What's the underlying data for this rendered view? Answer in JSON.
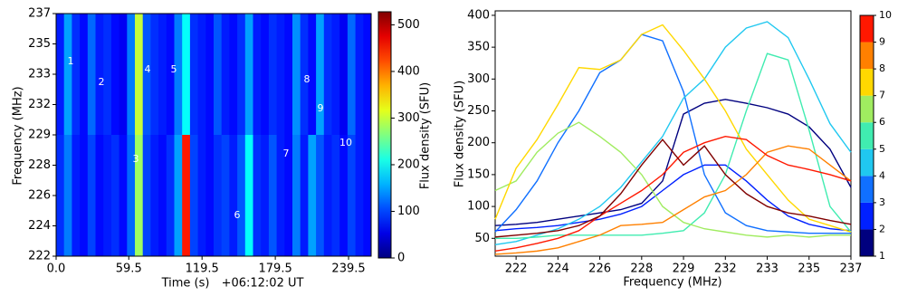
{
  "chart_data": [
    {
      "type": "heatmap",
      "cmap": "jet",
      "xlabel": "Time (s)",
      "x_annotation": "+06:12:02 UT",
      "ylabel": "Frequency (MHz)",
      "colorbar_label": "Flux density (SFU)",
      "xlim": [
        0,
        258
      ],
      "xticks": [
        {
          "value": 0,
          "label": "0.0"
        },
        59.5,
        119.5,
        179.5,
        239.5
      ],
      "ylim": [
        0,
        8
      ],
      "yticks": [
        {
          "value": 0,
          "label": "222"
        },
        {
          "value": 1,
          "label": "224"
        },
        {
          "value": 2,
          "label": "226"
        },
        {
          "value": 3,
          "label": "228"
        },
        {
          "value": 4,
          "label": "229"
        },
        {
          "value": 5,
          "label": "232"
        },
        {
          "value": 6,
          "label": "233"
        },
        {
          "value": 7,
          "label": "235"
        },
        {
          "value": 8,
          "label": "237"
        }
      ],
      "clim": [
        0,
        528
      ],
      "cticks": [
        0,
        100,
        200,
        300,
        400,
        500
      ],
      "annotations": [
        "1",
        "2",
        "3",
        "4",
        "5",
        "6",
        "7",
        "8",
        "9",
        "10"
      ],
      "z": [
        [
          80,
          150,
          90,
          70,
          120,
          80,
          90,
          70,
          60,
          130,
          300,
          110,
          90,
          80,
          70,
          130,
          200,
          90,
          80,
          70,
          110,
          80,
          70,
          90,
          150,
          80,
          70,
          90,
          80,
          70,
          140,
          90,
          70,
          150,
          90,
          80,
          60,
          120,
          80,
          70
        ],
        [
          90,
          130,
          80,
          70,
          100,
          70,
          80,
          90,
          70,
          120,
          280,
          100,
          80,
          70,
          90,
          150,
          450,
          100,
          80,
          70,
          90,
          100,
          80,
          110,
          200,
          90,
          80,
          110,
          80,
          70,
          130,
          80,
          150,
          110,
          80,
          90,
          70,
          100,
          80,
          70
        ]
      ]
    },
    {
      "type": "line",
      "xlabel": "Frequency (MHz)",
      "ylabel": "Flux density (SFU)",
      "xlim": [
        -0.5,
        8
      ],
      "xticks": [
        {
          "value": 0,
          "label": "222"
        },
        {
          "value": 1,
          "label": "224"
        },
        {
          "value": 2,
          "label": "226"
        },
        {
          "value": 3,
          "label": "228"
        },
        {
          "value": 4,
          "label": "229"
        },
        {
          "value": 5,
          "label": "232"
        },
        {
          "value": 6,
          "label": "233"
        },
        {
          "value": 7,
          "label": "235"
        },
        {
          "value": 8,
          "label": "237"
        }
      ],
      "ylim": [
        22,
        407
      ],
      "yticks": [
        50,
        100,
        150,
        200,
        250,
        300,
        350,
        400
      ],
      "x": [
        -0.5,
        0,
        0.5,
        1,
        1.5,
        2,
        2.5,
        3,
        3.5,
        4,
        4.5,
        5,
        5.5,
        6,
        6.5,
        7,
        7.5,
        8
      ],
      "series": [
        {
          "name": "1",
          "color": "#00007f",
          "values": [
            70,
            72,
            75,
            80,
            85,
            90,
            95,
            105,
            140,
            245,
            262,
            268,
            262,
            255,
            245,
            225,
            190,
            130
          ]
        },
        {
          "name": "2",
          "color": "#0020ff",
          "values": [
            62,
            65,
            67,
            70,
            75,
            80,
            88,
            100,
            125,
            150,
            165,
            165,
            140,
            110,
            85,
            72,
            65,
            62
          ]
        },
        {
          "name": "3",
          "color": "#1070ff",
          "values": [
            60,
            95,
            140,
            200,
            250,
            310,
            330,
            370,
            360,
            280,
            150,
            90,
            70,
            62,
            60,
            58,
            58,
            58
          ]
        },
        {
          "name": "4",
          "color": "#20c8f0",
          "values": [
            40,
            45,
            55,
            65,
            80,
            100,
            130,
            170,
            210,
            270,
            300,
            350,
            380,
            390,
            365,
            300,
            230,
            185
          ]
        },
        {
          "name": "5",
          "color": "#40ecb0",
          "values": [
            50,
            50,
            52,
            55,
            55,
            55,
            55,
            55,
            58,
            62,
            90,
            150,
            250,
            340,
            330,
            220,
            100,
            60
          ]
        },
        {
          "name": "6",
          "color": "#a0ec60",
          "values": [
            125,
            140,
            185,
            215,
            232,
            210,
            185,
            150,
            100,
            75,
            65,
            60,
            55,
            52,
            55,
            52,
            55,
            55
          ]
        },
        {
          "name": "7",
          "color": "#ffd800",
          "values": [
            80,
            160,
            205,
            260,
            318,
            315,
            330,
            370,
            385,
            345,
            300,
            250,
            190,
            150,
            110,
            80,
            70,
            60
          ]
        },
        {
          "name": "8",
          "color": "#ff8000",
          "values": [
            25,
            27,
            30,
            35,
            45,
            55,
            70,
            72,
            75,
            95,
            115,
            125,
            150,
            185,
            195,
            190,
            165,
            140
          ]
        },
        {
          "name": "9",
          "color": "#ff1800",
          "values": [
            30,
            35,
            42,
            50,
            62,
            85,
            105,
            125,
            150,
            185,
            200,
            210,
            205,
            180,
            165,
            158,
            150,
            140
          ]
        },
        {
          "name": "10",
          "color": "#800000",
          "values": [
            52,
            55,
            58,
            62,
            70,
            85,
            120,
            165,
            205,
            165,
            195,
            150,
            120,
            100,
            90,
            85,
            78,
            72
          ]
        }
      ]
    }
  ]
}
